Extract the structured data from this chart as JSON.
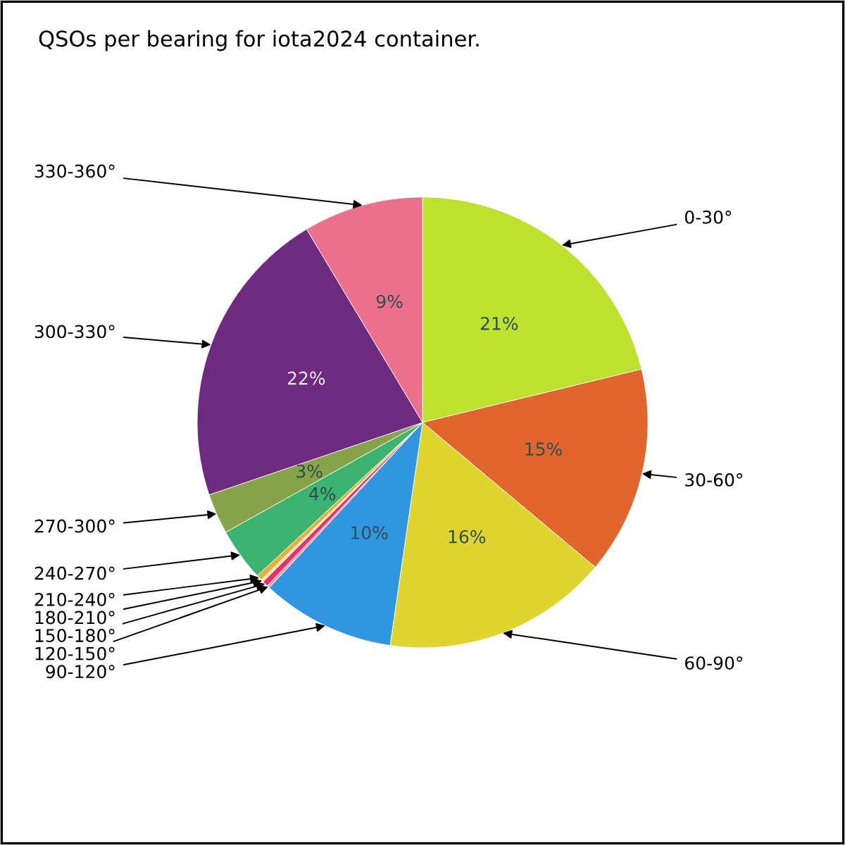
{
  "chart_data": {
    "type": "pie",
    "title": "QSOs per bearing for iota2024 container.",
    "categories": [
      "0-30°",
      "30-60°",
      "60-90°",
      "90-120°",
      "120-150°",
      "150-180°",
      "180-210°",
      "210-240°",
      "240-270°",
      "270-300°",
      "300-330°",
      "330-360°"
    ],
    "values": [
      21.2,
      14.9,
      16.2,
      9.6,
      0.2,
      0.4,
      0.2,
      0.4,
      3.8,
      2.9,
      21.6,
      8.6
    ],
    "value_labels": [
      "21%",
      "15%",
      "16%",
      "10%",
      null,
      null,
      null,
      null,
      "4%",
      "3%",
      "22%",
      "9%"
    ],
    "colors": [
      "#bde22e",
      "#e0662e",
      "#e0d52e",
      "#3096e0",
      "#f0a0b0",
      "#e8306a",
      "#f8e0c0",
      "#e8b030",
      "#3cb371",
      "#88a44a",
      "#6e2a7e",
      "#eb708c"
    ],
    "legend": false
  }
}
